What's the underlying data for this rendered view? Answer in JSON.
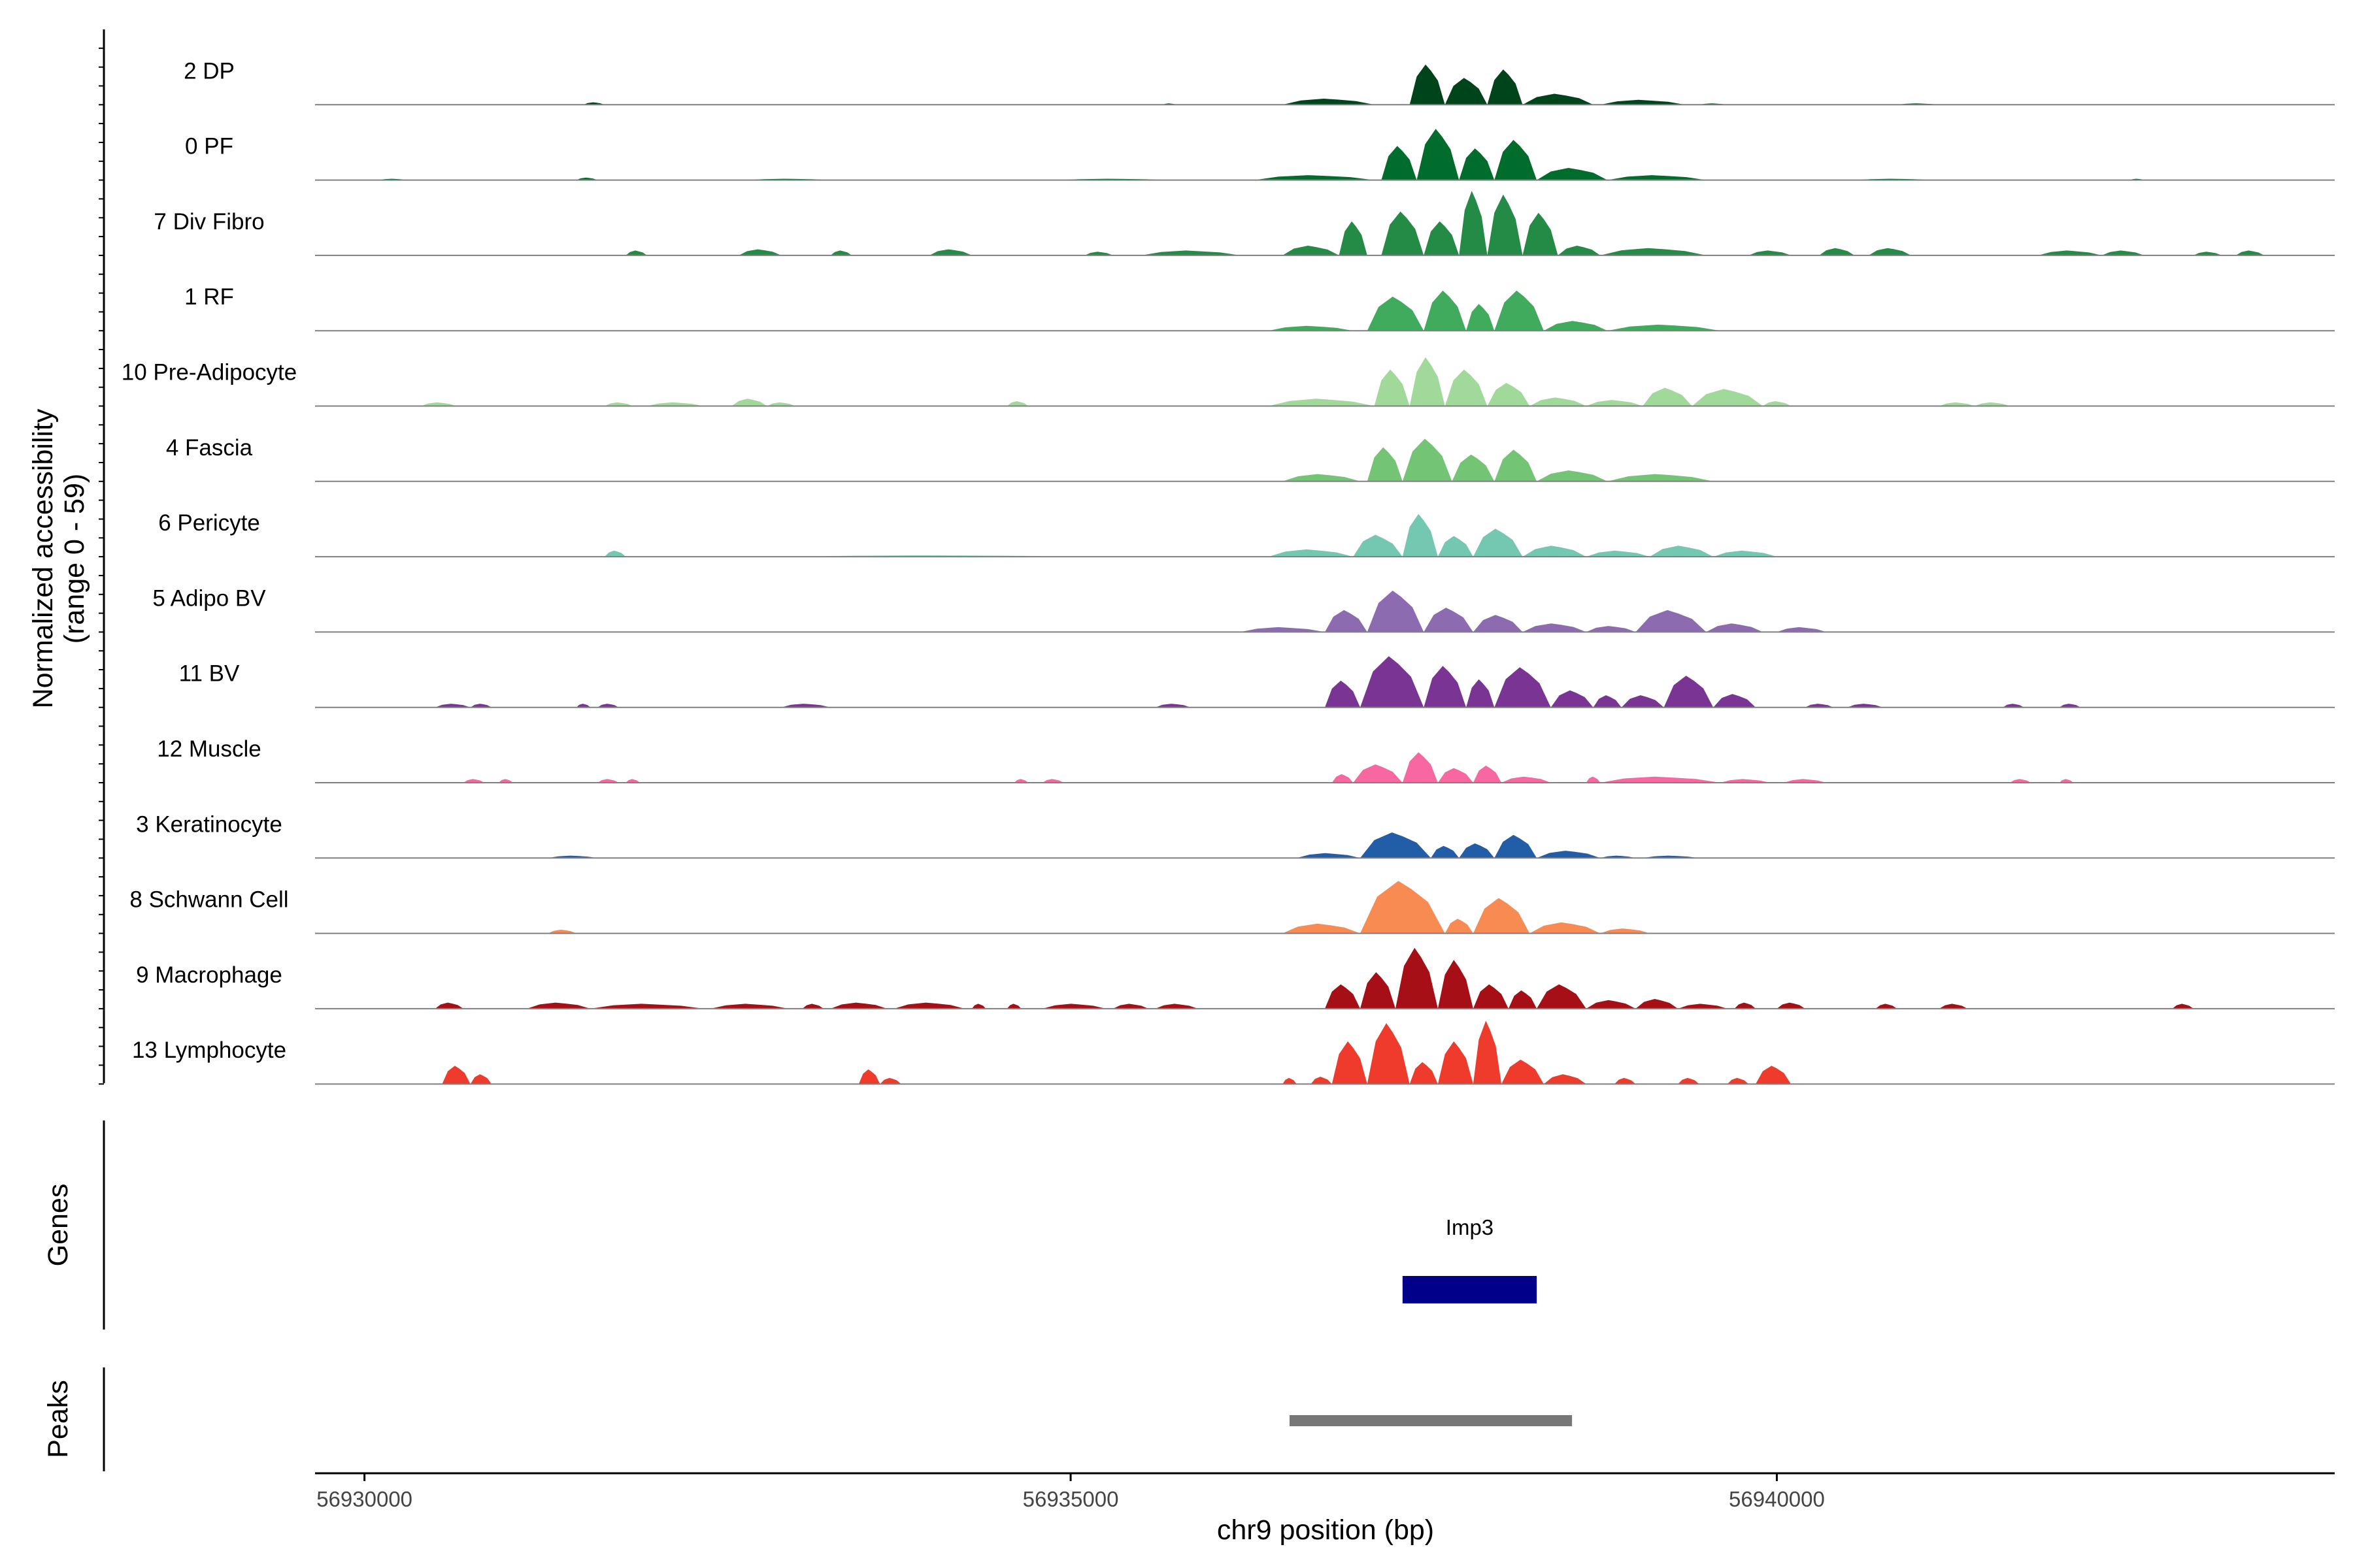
{
  "chart_data": {
    "type": "area",
    "genome_region": {
      "chromosome": "chr9",
      "xlim": [
        56929650,
        56943950
      ]
    },
    "y_axis_label_line1": "Normalized accessibility",
    "y_axis_label_line2": "(range 0 - 59)",
    "ylim": [
      0,
      59
    ],
    "x_axis_label": "chr9 position (bp)",
    "x_ticks": [
      {
        "value": 56930000,
        "label": "56930000"
      },
      {
        "value": 56935000,
        "label": "56935000"
      },
      {
        "value": 56940000,
        "label": "56940000"
      }
    ],
    "series": [
      {
        "name": "2 DP",
        "color": "#00441b",
        "regions": [
          [
            56931550,
            56931700,
            2
          ],
          [
            56935650,
            56935750,
            1
          ],
          [
            56936500,
            56937150,
            5
          ],
          [
            56937400,
            56937650,
            33
          ],
          [
            56937650,
            56937950,
            22
          ],
          [
            56937950,
            56938200,
            29
          ],
          [
            56938200,
            56938700,
            9
          ],
          [
            56938750,
            56939350,
            4
          ],
          [
            56939450,
            56939650,
            1
          ],
          [
            56940850,
            56941150,
            1
          ]
        ]
      },
      {
        "name": "0 PF",
        "color": "#006d2c",
        "regions": [
          [
            56930100,
            56930300,
            1
          ],
          [
            56931500,
            56931650,
            2
          ],
          [
            56932700,
            56933300,
            1
          ],
          [
            56934900,
            56935700,
            1
          ],
          [
            56936300,
            56937150,
            4
          ],
          [
            56937200,
            56937450,
            28
          ],
          [
            56937450,
            56937750,
            42
          ],
          [
            56937750,
            56938000,
            26
          ],
          [
            56938000,
            56938300,
            33
          ],
          [
            56938300,
            56938800,
            10
          ],
          [
            56938800,
            56939500,
            4
          ],
          [
            56940550,
            56941100,
            1
          ],
          [
            56942500,
            56942600,
            1
          ]
        ]
      },
      {
        "name": "7 Div Fibro",
        "color": "#238b45",
        "regions": [
          [
            56931850,
            56932000,
            4
          ],
          [
            56932650,
            56932950,
            5
          ],
          [
            56933300,
            56933450,
            4
          ],
          [
            56934000,
            56934300,
            5
          ],
          [
            56935100,
            56935300,
            3
          ],
          [
            56935500,
            56936200,
            4
          ],
          [
            56936500,
            56936900,
            8
          ],
          [
            56936900,
            56937100,
            28
          ],
          [
            56937200,
            56937500,
            36
          ],
          [
            56937500,
            56937750,
            28
          ],
          [
            56937750,
            56937950,
            53
          ],
          [
            56937950,
            56938200,
            50
          ],
          [
            56938200,
            56938450,
            35
          ],
          [
            56938450,
            56938750,
            8
          ],
          [
            56938750,
            56939500,
            6
          ],
          [
            56939800,
            56940100,
            4
          ],
          [
            56940300,
            56940550,
            6
          ],
          [
            56940650,
            56940950,
            6
          ],
          [
            56941850,
            56942300,
            4
          ],
          [
            56942300,
            56942600,
            4
          ],
          [
            56942950,
            56943150,
            3
          ],
          [
            56943250,
            56943450,
            4
          ]
        ]
      },
      {
        "name": "1 RF",
        "color": "#41ab5d",
        "regions": [
          [
            56936400,
            56937000,
            4
          ],
          [
            56937100,
            56937500,
            28
          ],
          [
            56937500,
            56937800,
            33
          ],
          [
            56937800,
            56938000,
            22
          ],
          [
            56938000,
            56938350,
            33
          ],
          [
            56938350,
            56938800,
            8
          ],
          [
            56938800,
            56939600,
            5
          ]
        ]
      },
      {
        "name": "10 Pre-Adipocyte",
        "color": "#a1d99b",
        "regions": [
          [
            56930400,
            56930650,
            3
          ],
          [
            56931700,
            56931900,
            3
          ],
          [
            56932000,
            56932400,
            3
          ],
          [
            56932600,
            56932850,
            6
          ],
          [
            56932850,
            56933050,
            3
          ],
          [
            56934550,
            56934700,
            4
          ],
          [
            56936400,
            56937150,
            6
          ],
          [
            56937150,
            56937400,
            30
          ],
          [
            56937400,
            56937650,
            40
          ],
          [
            56937650,
            56937950,
            30
          ],
          [
            56937950,
            56938250,
            19
          ],
          [
            56938250,
            56938650,
            7
          ],
          [
            56938650,
            56939050,
            5
          ],
          [
            56939050,
            56939400,
            15
          ],
          [
            56939400,
            56939900,
            14
          ],
          [
            56939900,
            56940100,
            4
          ],
          [
            56941150,
            56941400,
            3
          ],
          [
            56941400,
            56941650,
            3
          ]
        ]
      },
      {
        "name": "4 Fascia",
        "color": "#74c476",
        "regions": [
          [
            56936500,
            56937050,
            6
          ],
          [
            56937100,
            56937350,
            28
          ],
          [
            56937350,
            56937700,
            35
          ],
          [
            56937700,
            56938000,
            22
          ],
          [
            56938000,
            56938300,
            26
          ],
          [
            56938300,
            56938800,
            9
          ],
          [
            56938800,
            56939550,
            6
          ]
        ]
      },
      {
        "name": "6 Pericyte",
        "color": "#74c7b0",
        "regions": [
          [
            56931700,
            56931850,
            5
          ],
          [
            56933000,
            56935100,
            1
          ],
          [
            56936400,
            56937000,
            6
          ],
          [
            56937000,
            56937350,
            18
          ],
          [
            56937350,
            56937600,
            35
          ],
          [
            56937600,
            56937850,
            17
          ],
          [
            56937850,
            56938200,
            23
          ],
          [
            56938200,
            56938650,
            9
          ],
          [
            56938650,
            56939100,
            5
          ],
          [
            56939100,
            56939550,
            9
          ],
          [
            56939550,
            56940000,
            5
          ]
        ]
      },
      {
        "name": "5 Adipo BV",
        "color": "#8c6bb1",
        "regions": [
          [
            56936200,
            56936800,
            4
          ],
          [
            56936800,
            56937100,
            18
          ],
          [
            56937100,
            56937500,
            34
          ],
          [
            56937500,
            56937850,
            20
          ],
          [
            56937850,
            56938200,
            14
          ],
          [
            56938200,
            56938650,
            7
          ],
          [
            56938650,
            56939000,
            5
          ],
          [
            56939000,
            56939500,
            18
          ],
          [
            56939500,
            56939900,
            7
          ],
          [
            56940000,
            56940350,
            4
          ]
        ]
      },
      {
        "name": "11 BV",
        "color": "#7a3594",
        "regions": [
          [
            56930500,
            56930750,
            3
          ],
          [
            56930750,
            56930900,
            3
          ],
          [
            56931500,
            56931600,
            3
          ],
          [
            56931650,
            56931800,
            3
          ],
          [
            56932950,
            56933300,
            3
          ],
          [
            56935600,
            56935850,
            3
          ],
          [
            56936800,
            56937050,
            22
          ],
          [
            56937050,
            56937500,
            42
          ],
          [
            56937500,
            56937800,
            34
          ],
          [
            56937800,
            56938000,
            23
          ],
          [
            56938000,
            56938400,
            33
          ],
          [
            56938400,
            56938700,
            14
          ],
          [
            56938700,
            56938900,
            10
          ],
          [
            56938900,
            56939200,
            10
          ],
          [
            56939200,
            56939550,
            26
          ],
          [
            56939550,
            56939850,
            11
          ],
          [
            56940200,
            56940400,
            3
          ],
          [
            56940500,
            56940750,
            3
          ],
          [
            56941600,
            56941750,
            3
          ],
          [
            56942000,
            56942150,
            3
          ]
        ]
      },
      {
        "name": "12 Muscle",
        "color": "#f768a1",
        "regions": [
          [
            56930700,
            56930850,
            3
          ],
          [
            56930950,
            56931050,
            3
          ],
          [
            56931650,
            56931800,
            3
          ],
          [
            56931850,
            56931950,
            3
          ],
          [
            56934600,
            56934700,
            3
          ],
          [
            56934800,
            56934950,
            3
          ],
          [
            56936850,
            56937000,
            7
          ],
          [
            56937000,
            56937350,
            15
          ],
          [
            56937350,
            56937600,
            25
          ],
          [
            56937600,
            56937850,
            12
          ],
          [
            56937850,
            56938050,
            14
          ],
          [
            56938050,
            56938400,
            5
          ],
          [
            56938650,
            56938750,
            5
          ],
          [
            56938750,
            56939600,
            5
          ],
          [
            56939600,
            56939950,
            3
          ],
          [
            56940050,
            56940350,
            3
          ],
          [
            56941650,
            56941800,
            3
          ],
          [
            56942000,
            56942100,
            3
          ]
        ]
      },
      {
        "name": "3 Keratinocyte",
        "color": "#225ea8",
        "regions": [
          [
            56931300,
            56931650,
            2
          ],
          [
            56936600,
            56937050,
            4
          ],
          [
            56937050,
            56937550,
            21
          ],
          [
            56937550,
            56937750,
            10
          ],
          [
            56937750,
            56938000,
            12
          ],
          [
            56938000,
            56938300,
            19
          ],
          [
            56938300,
            56938750,
            6
          ],
          [
            56938750,
            56939000,
            2
          ],
          [
            56939050,
            56939450,
            2
          ]
        ]
      },
      {
        "name": "8 Schwann Cell",
        "color": "#f88b52",
        "regions": [
          [
            56931300,
            56931500,
            3
          ],
          [
            56936500,
            56937050,
            8
          ],
          [
            56937050,
            56937650,
            43
          ],
          [
            56937650,
            56937850,
            12
          ],
          [
            56937850,
            56938250,
            29
          ],
          [
            56938250,
            56938750,
            9
          ],
          [
            56938750,
            56939100,
            4
          ]
        ]
      },
      {
        "name": "9 Macrophage",
        "color": "#a50f15",
        "regions": [
          [
            56930500,
            56930700,
            5
          ],
          [
            56931150,
            56931600,
            5
          ],
          [
            56931600,
            56932400,
            4
          ],
          [
            56932450,
            56933000,
            4
          ],
          [
            56933100,
            56933250,
            4
          ],
          [
            56933300,
            56933700,
            5
          ],
          [
            56933750,
            56934250,
            5
          ],
          [
            56934300,
            56934400,
            4
          ],
          [
            56934550,
            56934650,
            4
          ],
          [
            56934800,
            56935250,
            4
          ],
          [
            56935300,
            56935550,
            4
          ],
          [
            56935600,
            56935900,
            4
          ],
          [
            56936800,
            56937050,
            20
          ],
          [
            56937050,
            56937300,
            30
          ],
          [
            56937300,
            56937600,
            50
          ],
          [
            56937600,
            56937850,
            40
          ],
          [
            56937850,
            56938100,
            20
          ],
          [
            56938100,
            56938300,
            15
          ],
          [
            56938300,
            56938650,
            20
          ],
          [
            56938650,
            56939000,
            7
          ],
          [
            56939000,
            56939300,
            8
          ],
          [
            56939300,
            56939650,
            4
          ],
          [
            56939700,
            56939850,
            5
          ],
          [
            56940000,
            56940200,
            5
          ],
          [
            56940700,
            56940850,
            4
          ],
          [
            56941150,
            56941350,
            4
          ],
          [
            56942800,
            56942950,
            4
          ]
        ]
      },
      {
        "name": "13 Lymphocyte",
        "color": "#ef3b2c",
        "regions": [
          [
            56930550,
            56930750,
            15
          ],
          [
            56930750,
            56930900,
            8
          ],
          [
            56933500,
            56933650,
            12
          ],
          [
            56933650,
            56933800,
            5
          ],
          [
            56936500,
            56936600,
            5
          ],
          [
            56936700,
            56936850,
            6
          ],
          [
            56936850,
            56937100,
            35
          ],
          [
            56937100,
            56937400,
            50
          ],
          [
            56937400,
            56937600,
            18
          ],
          [
            56937600,
            56937850,
            35
          ],
          [
            56937850,
            56938050,
            52
          ],
          [
            56938050,
            56938350,
            20
          ],
          [
            56938350,
            56938650,
            8
          ],
          [
            56938850,
            56939000,
            5
          ],
          [
            56939300,
            56939450,
            5
          ],
          [
            56939650,
            56939800,
            5
          ],
          [
            56939850,
            56940100,
            15
          ]
        ]
      }
    ],
    "genes": [
      {
        "name": "Imp3",
        "start": 56937350,
        "end": 56938300,
        "color": "#00008b"
      }
    ],
    "peaks": [
      {
        "start": 56936550,
        "end": 56938550,
        "color": "#777777"
      }
    ],
    "genes_track_label": "Genes",
    "peaks_track_label": "Peaks"
  }
}
